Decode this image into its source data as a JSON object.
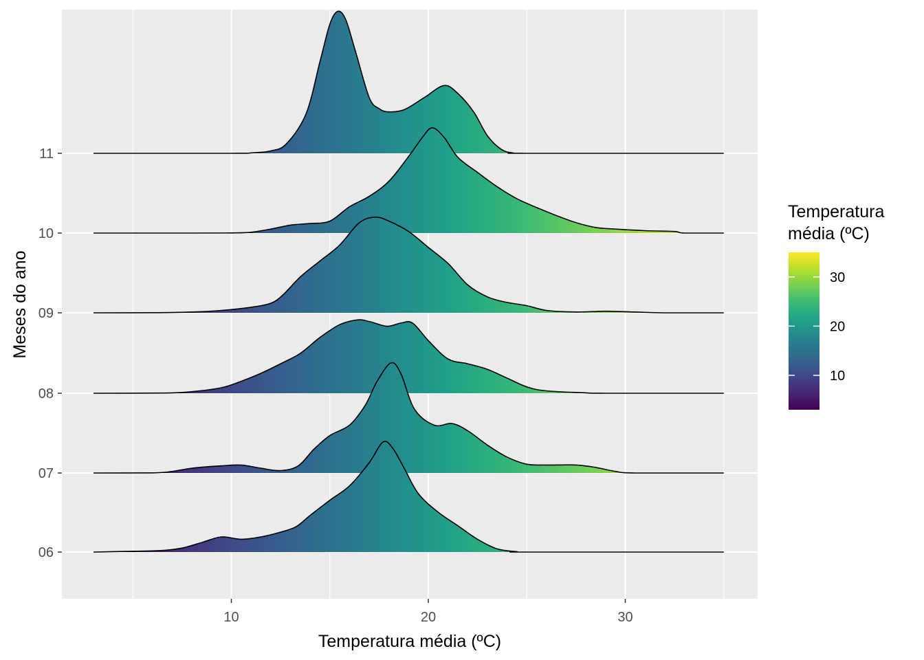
{
  "chart_data": {
    "type": "ridgeline",
    "xlabel": "Temperatura média (ºC)",
    "ylabel": "Meses do ano",
    "x_ticks": [
      10,
      20,
      30
    ],
    "xlim": [
      3,
      35
    ],
    "grid": true,
    "categories": [
      "06",
      "07",
      "08",
      "09",
      "10",
      "11"
    ],
    "color_scale": {
      "title": [
        "Temperatura",
        "média (ºC)"
      ],
      "palette": "viridis",
      "colors": [
        "#440154",
        "#482878",
        "#3E4A89",
        "#31688E",
        "#26828E",
        "#1F9E89",
        "#35B779",
        "#6DCD59",
        "#B4DE2C",
        "#FDE725"
      ],
      "range": [
        3,
        35
      ],
      "ticks": [
        10,
        20,
        30
      ],
      "position": "right"
    },
    "series": [
      {
        "name": "06",
        "points": [
          [
            3,
            0
          ],
          [
            5,
            0.01
          ],
          [
            6.5,
            0.02
          ],
          [
            7.5,
            0.05
          ],
          [
            8.5,
            0.12
          ],
          [
            9.5,
            0.19
          ],
          [
            10.5,
            0.16
          ],
          [
            11.5,
            0.19
          ],
          [
            12.5,
            0.25
          ],
          [
            13.3,
            0.32
          ],
          [
            14,
            0.46
          ],
          [
            15,
            0.65
          ],
          [
            16,
            0.83
          ],
          [
            17,
            1.12
          ],
          [
            17.7,
            1.38
          ],
          [
            18.2,
            1.3
          ],
          [
            18.8,
            1.04
          ],
          [
            19.5,
            0.73
          ],
          [
            20.5,
            0.5
          ],
          [
            21.5,
            0.33
          ],
          [
            22.5,
            0.16
          ],
          [
            23.5,
            0.04
          ],
          [
            24.5,
            0.005
          ],
          [
            25,
            0
          ],
          [
            35,
            0
          ]
        ]
      },
      {
        "name": "07",
        "points": [
          [
            3,
            0
          ],
          [
            6,
            0.002
          ],
          [
            7,
            0.02
          ],
          [
            8,
            0.06
          ],
          [
            9.5,
            0.09
          ],
          [
            10.5,
            0.1
          ],
          [
            11.5,
            0.06
          ],
          [
            12.5,
            0.03
          ],
          [
            13.4,
            0.09
          ],
          [
            14.2,
            0.3
          ],
          [
            15,
            0.47
          ],
          [
            16,
            0.6
          ],
          [
            16.8,
            0.85
          ],
          [
            17.4,
            1.15
          ],
          [
            18.1,
            1.38
          ],
          [
            18.6,
            1.25
          ],
          [
            19.3,
            0.8
          ],
          [
            20.3,
            0.6
          ],
          [
            21.2,
            0.62
          ],
          [
            22,
            0.53
          ],
          [
            23,
            0.35
          ],
          [
            24,
            0.2
          ],
          [
            25,
            0.11
          ],
          [
            26,
            0.1
          ],
          [
            27.5,
            0.1
          ],
          [
            28.5,
            0.07
          ],
          [
            29.5,
            0.02
          ],
          [
            30.5,
            0
          ],
          [
            35,
            0
          ]
        ]
      },
      {
        "name": "08",
        "points": [
          [
            3,
            0
          ],
          [
            6.5,
            0.003
          ],
          [
            8,
            0.02
          ],
          [
            9.5,
            0.07
          ],
          [
            10.5,
            0.15
          ],
          [
            11.5,
            0.25
          ],
          [
            12.5,
            0.37
          ],
          [
            13.5,
            0.5
          ],
          [
            14.5,
            0.7
          ],
          [
            15.5,
            0.86
          ],
          [
            16.4,
            0.92
          ],
          [
            17,
            0.9
          ],
          [
            17.9,
            0.84
          ],
          [
            18.6,
            0.88
          ],
          [
            19.2,
            0.88
          ],
          [
            20,
            0.66
          ],
          [
            21,
            0.43
          ],
          [
            22,
            0.37
          ],
          [
            23,
            0.3
          ],
          [
            24,
            0.19
          ],
          [
            25,
            0.08
          ],
          [
            26,
            0.03
          ],
          [
            28,
            0.005
          ],
          [
            29,
            0
          ],
          [
            35,
            0
          ]
        ]
      },
      {
        "name": "09",
        "points": [
          [
            3,
            0
          ],
          [
            6,
            0.002
          ],
          [
            8,
            0.01
          ],
          [
            9.5,
            0.03
          ],
          [
            11,
            0.07
          ],
          [
            12,
            0.12
          ],
          [
            12.6,
            0.22
          ],
          [
            13.5,
            0.45
          ],
          [
            14.5,
            0.65
          ],
          [
            15.5,
            0.85
          ],
          [
            16.5,
            1.13
          ],
          [
            17.3,
            1.2
          ],
          [
            18,
            1.15
          ],
          [
            19,
            1.02
          ],
          [
            20,
            0.82
          ],
          [
            21,
            0.62
          ],
          [
            22,
            0.35
          ],
          [
            23,
            0.2
          ],
          [
            24,
            0.13
          ],
          [
            25,
            0.09
          ],
          [
            26,
            0.03
          ],
          [
            27.5,
            0.01
          ],
          [
            29,
            0.02
          ],
          [
            30.5,
            0.01
          ],
          [
            32,
            0
          ],
          [
            35,
            0
          ]
        ]
      },
      {
        "name": "10",
        "points": [
          [
            3,
            0
          ],
          [
            8,
            0
          ],
          [
            10,
            0.002
          ],
          [
            11,
            0.01
          ],
          [
            12,
            0.05
          ],
          [
            13,
            0.1
          ],
          [
            14,
            0.12
          ],
          [
            15,
            0.15
          ],
          [
            16,
            0.33
          ],
          [
            17,
            0.46
          ],
          [
            18,
            0.65
          ],
          [
            19,
            0.96
          ],
          [
            19.7,
            1.2
          ],
          [
            20.2,
            1.32
          ],
          [
            20.8,
            1.2
          ],
          [
            21.5,
            0.95
          ],
          [
            22.5,
            0.76
          ],
          [
            23.5,
            0.58
          ],
          [
            24.5,
            0.43
          ],
          [
            25.5,
            0.32
          ],
          [
            26.5,
            0.22
          ],
          [
            27.5,
            0.13
          ],
          [
            28.5,
            0.07
          ],
          [
            29.5,
            0.05
          ],
          [
            31,
            0.03
          ],
          [
            32.5,
            0.02
          ],
          [
            33,
            0
          ],
          [
            35,
            0
          ]
        ]
      },
      {
        "name": "11",
        "points": [
          [
            3,
            0
          ],
          [
            10,
            0
          ],
          [
            11,
            0.005
          ],
          [
            12,
            0.03
          ],
          [
            12.8,
            0.12
          ],
          [
            13.8,
            0.5
          ],
          [
            14.5,
            1.15
          ],
          [
            15,
            1.62
          ],
          [
            15.4,
            1.78
          ],
          [
            15.8,
            1.68
          ],
          [
            16.3,
            1.28
          ],
          [
            17,
            0.7
          ],
          [
            17.5,
            0.56
          ],
          [
            18,
            0.52
          ],
          [
            18.8,
            0.55
          ],
          [
            19.8,
            0.7
          ],
          [
            20.8,
            0.85
          ],
          [
            21.5,
            0.75
          ],
          [
            22.3,
            0.52
          ],
          [
            23,
            0.22
          ],
          [
            23.7,
            0.05
          ],
          [
            24.3,
            0.005
          ],
          [
            25,
            0
          ],
          [
            35,
            0
          ]
        ]
      }
    ]
  }
}
